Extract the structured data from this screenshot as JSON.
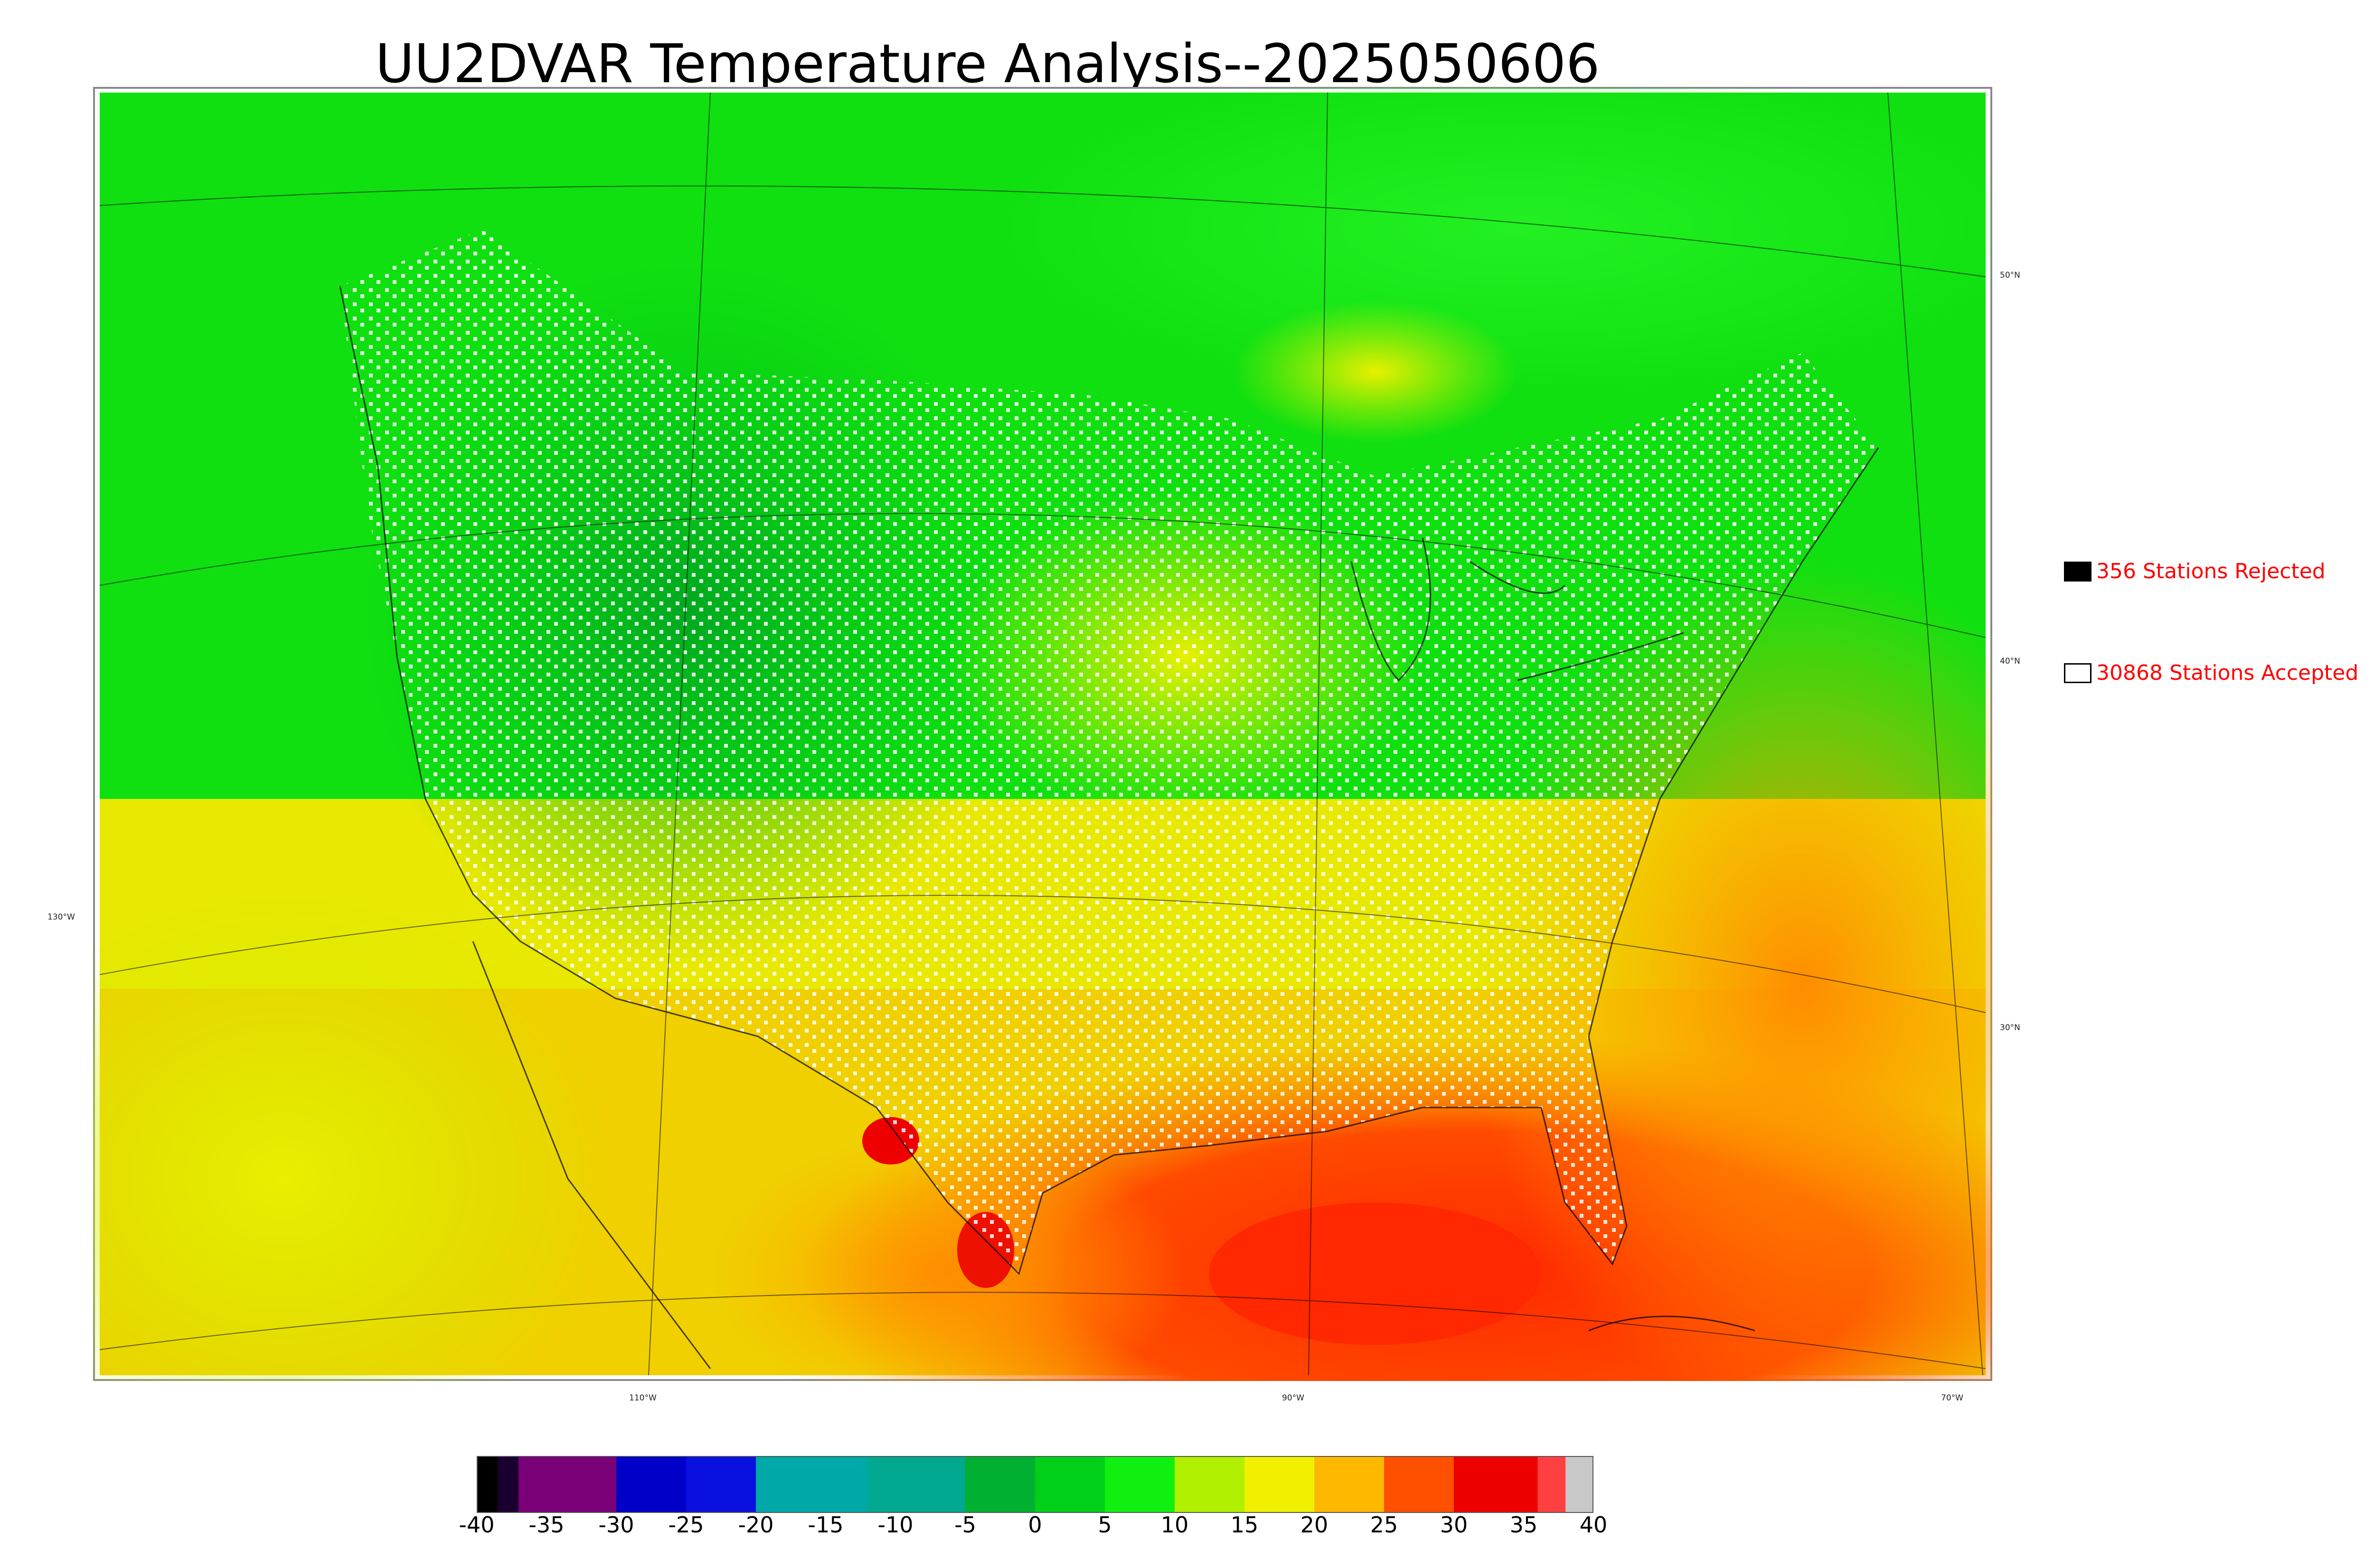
{
  "title": "UU2DVAR Temperature Analysis--2025050606",
  "legend": {
    "rejected": {
      "label": "356 Stations Rejected",
      "swatch_color": "#000000"
    },
    "accepted": {
      "label": "30868 Stations Accepted",
      "swatch_color": "#ffffff"
    },
    "text_color": "#ff0000"
  },
  "map": {
    "longitude_labels": [
      "130°W",
      "110°W",
      "90°W",
      "70°W"
    ],
    "latitude_labels": [
      "50°N",
      "40°N",
      "30°N"
    ]
  },
  "colorbar": {
    "ticks": [
      "-40",
      "-35",
      "-30",
      "-25",
      "-20",
      "-15",
      "-10",
      "-5",
      "0",
      "5",
      "10",
      "15",
      "20",
      "25",
      "30",
      "35",
      "40"
    ],
    "min": -40,
    "max": 40,
    "stops": [
      {
        "from": -40,
        "to": -38.5,
        "color": "#000000"
      },
      {
        "from": -38.5,
        "to": -37,
        "color": "#1a0030"
      },
      {
        "from": -37,
        "to": -30,
        "color": "#7a0078"
      },
      {
        "from": -30,
        "to": -25,
        "color": "#0000c8"
      },
      {
        "from": -25,
        "to": -20,
        "color": "#0a10e0"
      },
      {
        "from": -20,
        "to": -12,
        "color": "#00a8a8"
      },
      {
        "from": -12,
        "to": -5,
        "color": "#00a890"
      },
      {
        "from": -5,
        "to": 0,
        "color": "#00b030"
      },
      {
        "from": 0,
        "to": 5,
        "color": "#00d018"
      },
      {
        "from": 5,
        "to": 10,
        "color": "#10f010"
      },
      {
        "from": 10,
        "to": 15,
        "color": "#b0f000"
      },
      {
        "from": 15,
        "to": 20,
        "color": "#f0f000"
      },
      {
        "from": 20,
        "to": 25,
        "color": "#ffb800"
      },
      {
        "from": 25,
        "to": 30,
        "color": "#ff5000"
      },
      {
        "from": 30,
        "to": 36,
        "color": "#ee0000"
      },
      {
        "from": 36,
        "to": 38,
        "color": "#ff4040"
      },
      {
        "from": 38,
        "to": 40,
        "color": "#c8c8c8"
      }
    ]
  }
}
